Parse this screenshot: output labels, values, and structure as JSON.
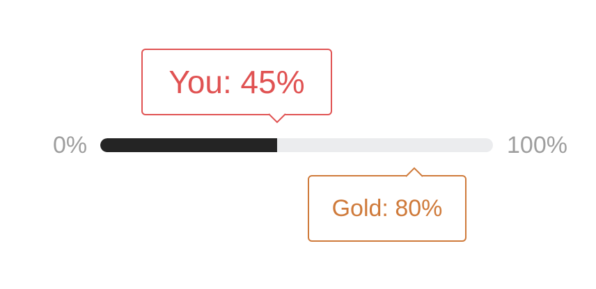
{
  "scale": {
    "min_label": "0%",
    "max_label": "100%"
  },
  "progress": {
    "value_percent": 45,
    "benchmark_percent": 80
  },
  "callouts": {
    "you_label": "You: 45%",
    "gold_label": "Gold: 80%"
  },
  "colors": {
    "you": "#e05252",
    "gold": "#cf7a3a",
    "fill": "#242424",
    "track": "#ebecee",
    "scale_text": "#9e9e9e"
  }
}
